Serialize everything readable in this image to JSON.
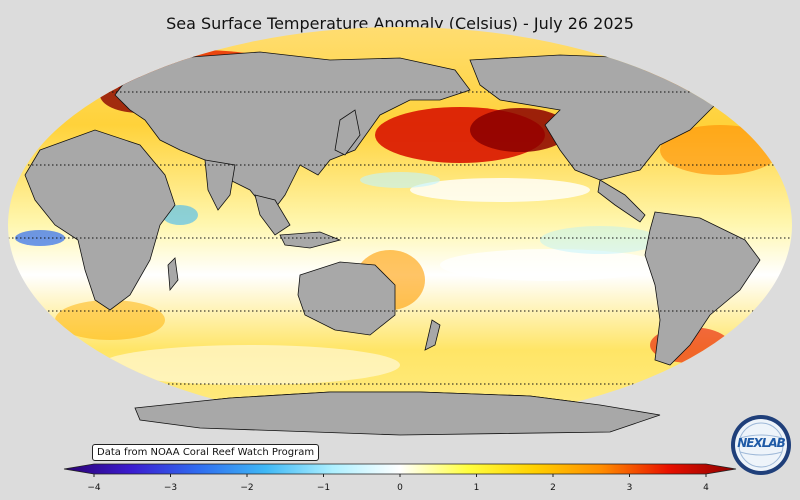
{
  "title": "Sea Surface Temperature Anomaly (Celsius) - July 26 2025",
  "credit": "Data from NOAA Coral Reef Watch Program",
  "logo": {
    "text": "NEXLAB"
  },
  "colorbar": {
    "min": -4,
    "max": 4,
    "ticks": [
      "−4",
      "−3",
      "−2",
      "−1",
      "0",
      "1",
      "2",
      "3",
      "4"
    ],
    "colors": [
      "#2b0070",
      "#3b1cd0",
      "#2f6cf0",
      "#3fb8f5",
      "#aef0ff",
      "#ffffff",
      "#ffff40",
      "#ffd000",
      "#ff8c00",
      "#e81000",
      "#8b0000"
    ]
  },
  "colors": {
    "background": "#dcdcdc",
    "land": "#a8a8a8",
    "coast": "#111111"
  }
}
